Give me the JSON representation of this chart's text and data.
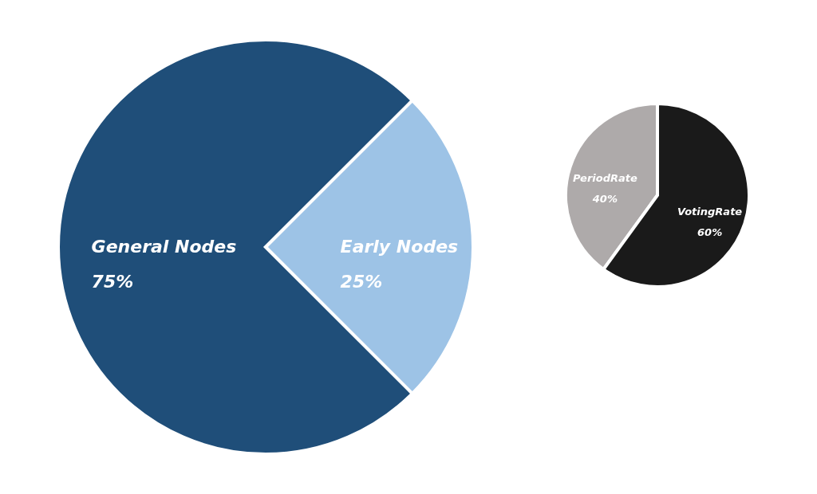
{
  "chart_data": [
    {
      "type": "pie",
      "categories": [
        "General Nodes",
        "Early Nodes"
      ],
      "values": [
        75,
        25
      ],
      "value_labels": [
        "75%",
        "25%"
      ],
      "colors": [
        "#1f4e79",
        "#9dc3e6"
      ],
      "legend": false
    },
    {
      "type": "pie",
      "categories": [
        "PeriodRate",
        "VotingRate"
      ],
      "values": [
        40,
        60
      ],
      "value_labels": [
        "40%",
        "60%"
      ],
      "colors": [
        "#aeaaaa",
        "#1a1a1a"
      ],
      "legend": false
    }
  ]
}
